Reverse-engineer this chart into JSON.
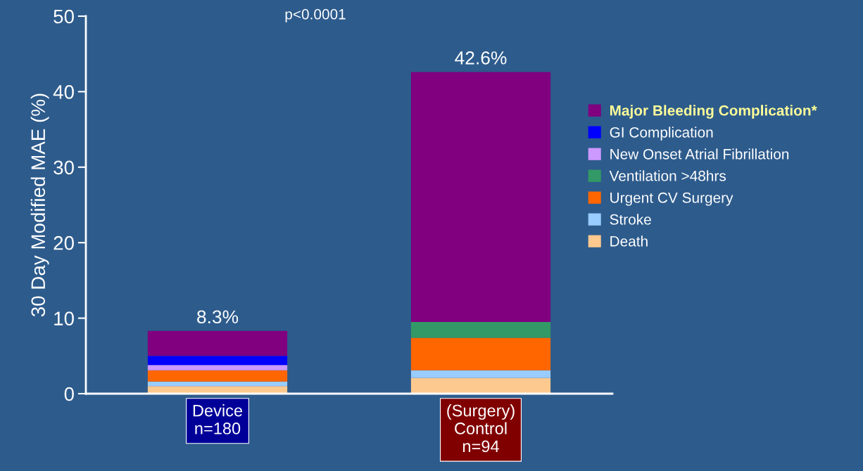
{
  "chart_data": {
    "type": "bar",
    "stacked": true,
    "ylabel": "30 Day Modified MAE (%)",
    "categories": [
      "Device\nn=180",
      "(Surgery)\nControl\nn=94"
    ],
    "series": [
      {
        "name": "Death",
        "color": "#fdc98f",
        "values": [
          1.0,
          2.1
        ]
      },
      {
        "name": "Stroke",
        "color": "#99ccff",
        "values": [
          0.6,
          1.0
        ]
      },
      {
        "name": "Urgent CV Surgery",
        "color": "#ff6600",
        "values": [
          1.5,
          4.3
        ]
      },
      {
        "name": "Ventilation >48hrs",
        "color": "#339966",
        "values": [
          0,
          2.1
        ]
      },
      {
        "name": "New Onset Atrial Fibrillation",
        "color": "#cc99ff",
        "values": [
          0.7,
          0
        ]
      },
      {
        "name": "GI Complication",
        "color": "#0000ff",
        "values": [
          1.2,
          0
        ]
      },
      {
        "name": "Major Bleeding Complication*",
        "color": "#800080",
        "values": [
          3.3,
          33.1
        ]
      }
    ],
    "totals": [
      "8.3%",
      "42.6%"
    ],
    "annotations": [
      "p<0.0001"
    ],
    "ylim": [
      0,
      50
    ],
    "yticks": [
      0,
      10,
      20,
      30,
      40,
      50
    ],
    "grid": false,
    "legend": "right"
  }
}
